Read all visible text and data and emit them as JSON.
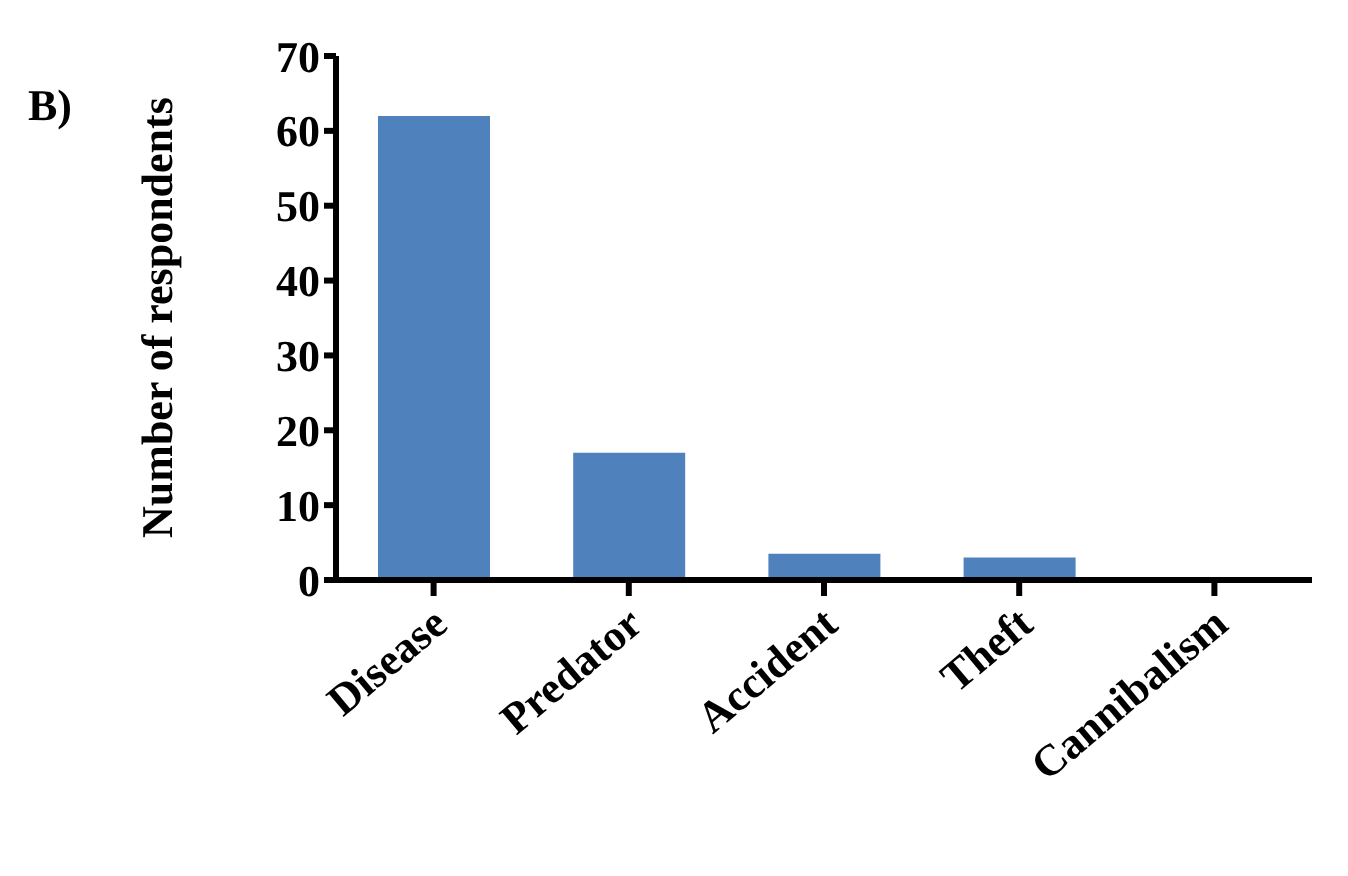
{
  "chart_data": {
    "type": "bar",
    "title": "B)",
    "ylabel": "Number of respondents",
    "categories": [
      "Disease",
      "Predator",
      "Accident",
      "Theft",
      "Cannibalism"
    ],
    "values": [
      62,
      17,
      3.5,
      3,
      0.3
    ],
    "color": "#4f81bd",
    "ylim": [
      0,
      70
    ],
    "yticks": [
      0,
      10,
      20,
      30,
      40,
      50,
      60,
      70
    ],
    "grid": false,
    "legend": false
  }
}
